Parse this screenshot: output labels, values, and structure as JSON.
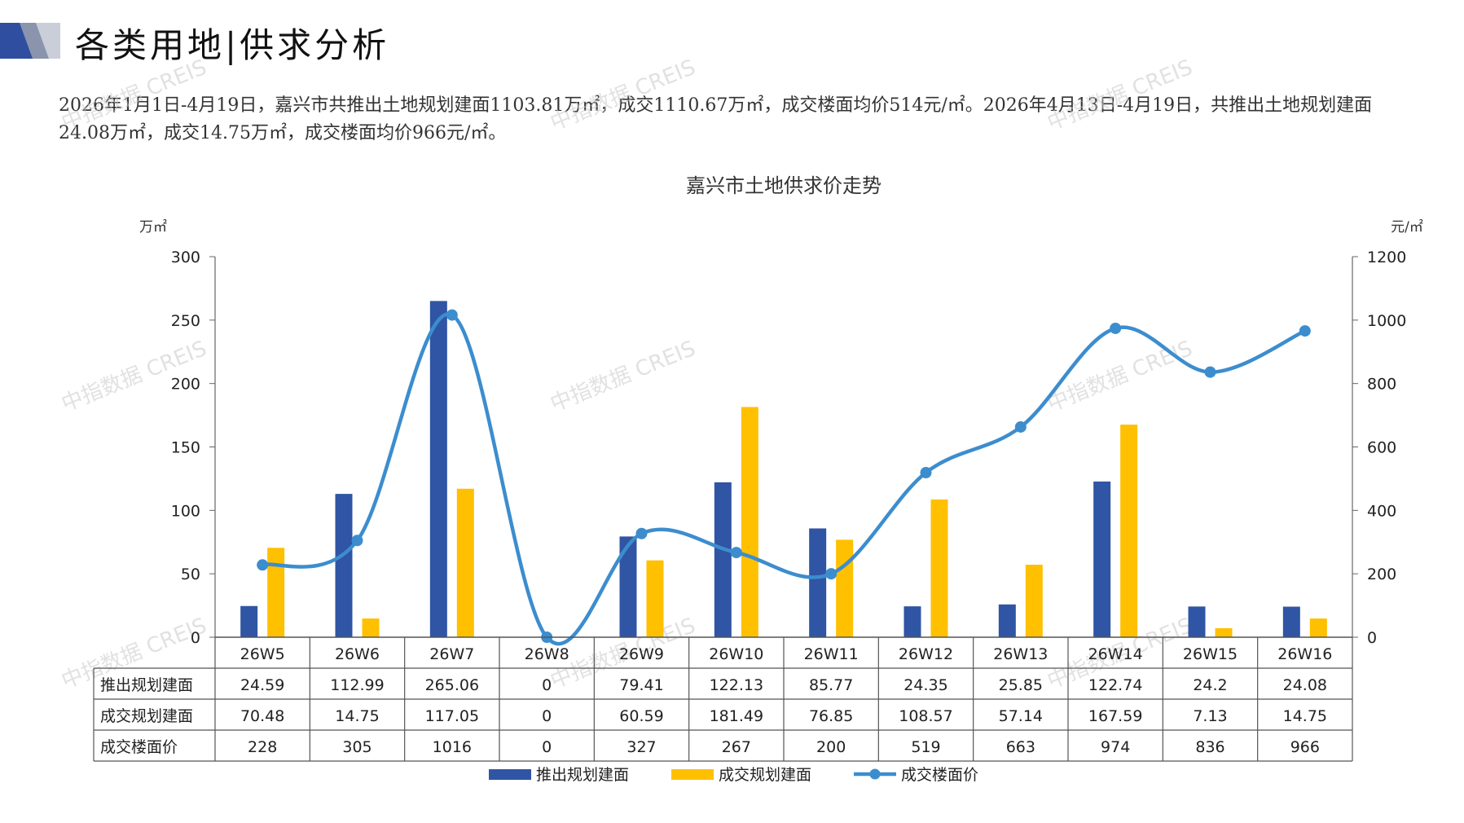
{
  "page": {
    "title": "各类用地|供求分析",
    "summary": "2026年1月1日-4月19日，嘉兴市共推出土地规划建面1103.81万㎡，成交1110.67万㎡，成交楼面均价514元/㎡。2026年4月13日-4月19日，共推出土地规划建面24.08万㎡，成交14.75万㎡，成交楼面均价966元/㎡。",
    "watermark": "中指数据 CREIS"
  },
  "colors": {
    "supply": "#2F55A4",
    "deal": "#FFC000",
    "price": "#3C8DCE",
    "logo_dark": "#2F4EA0",
    "logo_light": "#C9CED8"
  },
  "chart_data": {
    "type": "bar",
    "title": "嘉兴市土地供求价走势",
    "ylabel_left": "万㎡",
    "ylabel_right": "元/㎡",
    "ylim_left": [
      0,
      300
    ],
    "ylim_right": [
      0,
      1200
    ],
    "yticks_left": [
      0,
      50,
      100,
      150,
      200,
      250,
      300
    ],
    "yticks_right": [
      0,
      200,
      400,
      600,
      800,
      1000,
      1200
    ],
    "categories": [
      "26W5",
      "26W6",
      "26W7",
      "26W8",
      "26W9",
      "26W10",
      "26W11",
      "26W12",
      "26W13",
      "26W14",
      "26W15",
      "26W16"
    ],
    "series": [
      {
        "name": "推出规划建面",
        "type": "bar",
        "axis": "left",
        "values": [
          24.59,
          112.99,
          265.06,
          0,
          79.41,
          122.13,
          85.77,
          24.35,
          25.85,
          122.74,
          24.2,
          24.08
        ],
        "labels": [
          "24.59",
          "112.99",
          "265.06",
          "0",
          "79.41",
          "122.13",
          "85.77",
          "24.35",
          "25.85",
          "122.74",
          "24.2",
          "24.08"
        ]
      },
      {
        "name": "成交规划建面",
        "type": "bar",
        "axis": "left",
        "values": [
          70.48,
          14.75,
          117.05,
          0,
          60.59,
          181.49,
          76.85,
          108.57,
          57.14,
          167.59,
          7.13,
          14.75
        ],
        "labels": [
          "70.48",
          "14.75",
          "117.05",
          "0",
          "60.59",
          "181.49",
          "76.85",
          "108.57",
          "57.14",
          "167.59",
          "7.13",
          "14.75"
        ]
      },
      {
        "name": "成交楼面价",
        "type": "line",
        "axis": "right",
        "values": [
          228,
          305,
          1016,
          0,
          327,
          267,
          200,
          519,
          663,
          974,
          836,
          966
        ],
        "labels": [
          "228",
          "305",
          "1016",
          "0",
          "327",
          "267",
          "200",
          "519",
          "663",
          "974",
          "836",
          "966"
        ]
      }
    ],
    "grid": false,
    "legend": "bottom"
  }
}
